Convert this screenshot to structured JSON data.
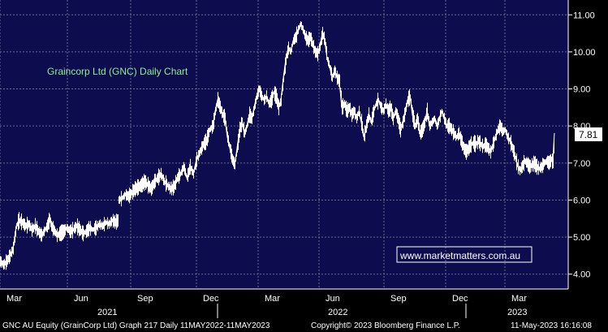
{
  "chart_data": {
    "type": "line",
    "title": "Graincorp Ltd (GNC) Daily Chart",
    "watermark": "www.marketmatters.com.au",
    "last_value_label": "7.81",
    "y_axis": {
      "min": 3.6,
      "max": 11.4,
      "ticks": [
        "4.00",
        "5.00",
        "6.00",
        "7.00",
        "8.00",
        "9.00",
        "10.00",
        "11.00"
      ],
      "position": "right"
    },
    "x_axis": {
      "months": [
        "Mar",
        "Jun",
        "Sep",
        "Dec",
        "Mar",
        "Jun",
        "Sep",
        "Dec",
        "Mar"
      ],
      "years": [
        "2021",
        "2022",
        "2023"
      ]
    },
    "grid": true,
    "series": [
      {
        "values": [
          [
            0,
            4.35
          ],
          [
            4,
            4.25
          ],
          [
            8,
            4.35
          ],
          [
            12,
            4.5
          ],
          [
            16,
            4.7
          ],
          [
            18,
            5.0
          ],
          [
            20,
            5.3
          ],
          [
            23,
            5.45
          ],
          [
            27,
            5.4
          ],
          [
            31,
            5.3
          ],
          [
            35,
            5.35
          ],
          [
            39,
            5.2
          ],
          [
            43,
            5.3
          ],
          [
            47,
            5.15
          ],
          [
            51,
            5.05
          ],
          [
            55,
            5.2
          ],
          [
            58,
            5.3
          ],
          [
            61,
            5.5
          ],
          [
            63,
            5.3
          ],
          [
            66,
            5.2
          ],
          [
            70,
            5.05
          ],
          [
            74,
            5.1
          ],
          [
            78,
            5.15
          ],
          [
            82,
            5.25
          ],
          [
            86,
            5.15
          ],
          [
            90,
            5.2
          ],
          [
            94,
            5.3
          ],
          [
            98,
            5.2
          ],
          [
            102,
            5.1
          ],
          [
            106,
            5.15
          ],
          [
            110,
            5.25
          ],
          [
            114,
            5.2
          ],
          [
            118,
            5.25
          ],
          [
            122,
            5.35
          ],
          [
            126,
            5.3
          ],
          [
            130,
            5.4
          ],
          [
            134,
            5.35
          ],
          [
            138,
            5.45
          ],
          [
            142,
            5.4
          ],
          [
            145,
            5.45
          ],
          [
            146,
            6.0
          ],
          [
            150,
            6.05
          ],
          [
            154,
            6.15
          ],
          [
            158,
            6.1
          ],
          [
            162,
            6.2
          ],
          [
            166,
            6.3
          ],
          [
            170,
            6.35
          ],
          [
            174,
            6.4
          ],
          [
            178,
            6.5
          ],
          [
            182,
            6.4
          ],
          [
            186,
            6.3
          ],
          [
            190,
            6.5
          ],
          [
            194,
            6.6
          ],
          [
            198,
            6.7
          ],
          [
            202,
            6.5
          ],
          [
            206,
            6.4
          ],
          [
            210,
            6.3
          ],
          [
            214,
            6.35
          ],
          [
            218,
            6.6
          ],
          [
            222,
            6.7
          ],
          [
            226,
            6.9
          ],
          [
            230,
            6.6
          ],
          [
            234,
            6.9
          ],
          [
            238,
            6.7
          ],
          [
            242,
            7.1
          ],
          [
            246,
            7.3
          ],
          [
            250,
            7.5
          ],
          [
            254,
            7.6
          ],
          [
            258,
            7.9
          ],
          [
            262,
            8.0
          ],
          [
            265,
            8.4
          ],
          [
            268,
            8.7
          ],
          [
            271,
            8.5
          ],
          [
            274,
            8.3
          ],
          [
            277,
            8.2
          ],
          [
            280,
            7.7
          ],
          [
            283,
            7.4
          ],
          [
            286,
            7.1
          ],
          [
            289,
            6.95
          ],
          [
            292,
            7.4
          ],
          [
            295,
            7.9
          ],
          [
            298,
            8.1
          ],
          [
            301,
            7.8
          ],
          [
            304,
            8.0
          ],
          [
            307,
            8.3
          ],
          [
            310,
            8.2
          ],
          [
            313,
            8.5
          ],
          [
            316,
            8.8
          ],
          [
            319,
            9.0
          ],
          [
            322,
            8.8
          ],
          [
            325,
            8.7
          ],
          [
            328,
            8.8
          ],
          [
            331,
            8.6
          ],
          [
            334,
            8.7
          ],
          [
            337,
            8.9
          ],
          [
            340,
            8.8
          ],
          [
            343,
            8.5
          ],
          [
            346,
            8.7
          ],
          [
            349,
            9.3
          ],
          [
            352,
            9.8
          ],
          [
            355,
            10.1
          ],
          [
            358,
            10.0
          ],
          [
            361,
            10.3
          ],
          [
            364,
            10.4
          ],
          [
            367,
            10.6
          ],
          [
            370,
            10.75
          ],
          [
            373,
            10.6
          ],
          [
            376,
            10.4
          ],
          [
            379,
            10.3
          ],
          [
            382,
            10.4
          ],
          [
            385,
            10.2
          ],
          [
            388,
            10.0
          ],
          [
            391,
            9.95
          ],
          [
            394,
            10.15
          ],
          [
            397,
            10.5
          ],
          [
            400,
            10.3
          ],
          [
            403,
            9.8
          ],
          [
            406,
            9.6
          ],
          [
            409,
            9.3
          ],
          [
            412,
            9.5
          ],
          [
            415,
            9.3
          ],
          [
            418,
            9.2
          ],
          [
            421,
            8.5
          ],
          [
            424,
            8.6
          ],
          [
            427,
            8.4
          ],
          [
            430,
            8.5
          ],
          [
            433,
            8.3
          ],
          [
            436,
            8.4
          ],
          [
            439,
            8.2
          ],
          [
            442,
            8.4
          ],
          [
            445,
            8.1
          ],
          [
            448,
            7.7
          ],
          [
            451,
            8.0
          ],
          [
            454,
            8.3
          ],
          [
            457,
            8.1
          ],
          [
            460,
            8.4
          ],
          [
            463,
            8.6
          ],
          [
            466,
            8.7
          ],
          [
            469,
            8.5
          ],
          [
            472,
            8.4
          ],
          [
            475,
            8.6
          ],
          [
            478,
            8.4
          ],
          [
            481,
            8.5
          ],
          [
            484,
            8.2
          ],
          [
            487,
            8.4
          ],
          [
            490,
            8.2
          ],
          [
            493,
            7.9
          ],
          [
            496,
            8.1
          ],
          [
            499,
            8.4
          ],
          [
            502,
            8.7
          ],
          [
            505,
            8.8
          ],
          [
            508,
            8.3
          ],
          [
            511,
            8.0
          ],
          [
            514,
            8.2
          ],
          [
            517,
            7.8
          ],
          [
            520,
            7.9
          ],
          [
            523,
            8.1
          ],
          [
            526,
            8.4
          ],
          [
            529,
            8.0
          ],
          [
            532,
            8.1
          ],
          [
            535,
            8.2
          ],
          [
            538,
            8.0
          ],
          [
            541,
            8.2
          ],
          [
            544,
            8.4
          ],
          [
            547,
            8.2
          ],
          [
            550,
            8.0
          ],
          [
            553,
            8.0
          ],
          [
            556,
            7.9
          ],
          [
            559,
            7.8
          ],
          [
            562,
            7.7
          ],
          [
            565,
            7.8
          ],
          [
            568,
            7.6
          ],
          [
            571,
            7.4
          ],
          [
            574,
            7.3
          ],
          [
            577,
            7.4
          ],
          [
            580,
            7.5
          ],
          [
            583,
            7.55
          ],
          [
            586,
            7.5
          ],
          [
            589,
            7.6
          ],
          [
            592,
            7.5
          ],
          [
            595,
            7.45
          ],
          [
            598,
            7.5
          ],
          [
            601,
            7.4
          ],
          [
            604,
            7.3
          ],
          [
            607,
            7.5
          ],
          [
            610,
            7.7
          ],
          [
            613,
            7.9
          ],
          [
            616,
            8.0
          ],
          [
            619,
            7.85
          ],
          [
            622,
            7.9
          ],
          [
            625,
            7.7
          ],
          [
            628,
            7.6
          ],
          [
            631,
            7.4
          ],
          [
            634,
            7.2
          ],
          [
            637,
            6.95
          ],
          [
            640,
            6.8
          ],
          [
            643,
            6.9
          ],
          [
            646,
            7.05
          ],
          [
            649,
            7.0
          ],
          [
            652,
            6.9
          ],
          [
            655,
            6.95
          ],
          [
            658,
            7.0
          ],
          [
            661,
            6.9
          ],
          [
            664,
            6.85
          ],
          [
            667,
            6.9
          ],
          [
            670,
            7.0
          ],
          [
            673,
            7.05
          ],
          [
            676,
            7.0
          ],
          [
            679,
            7.1
          ],
          [
            681,
            7.0
          ],
          [
            682,
            7.45
          ],
          [
            683,
            7.81
          ]
        ]
      }
    ]
  },
  "footer": {
    "left": "GNC AU Equity (GrainCorp Ltd) Graph 217  Daily 11MAY2022-11MAY2023",
    "middle": "Copyright© 2023 Bloomberg Finance L.P.",
    "right": "11-May-2023 16:16:08"
  },
  "colors": {
    "plot_background": "#0c0c4e",
    "grid": "#6a6a94",
    "price_line": "#ffffff",
    "title_text": "#8ff08f",
    "last_label_bg": "#ffffff"
  }
}
